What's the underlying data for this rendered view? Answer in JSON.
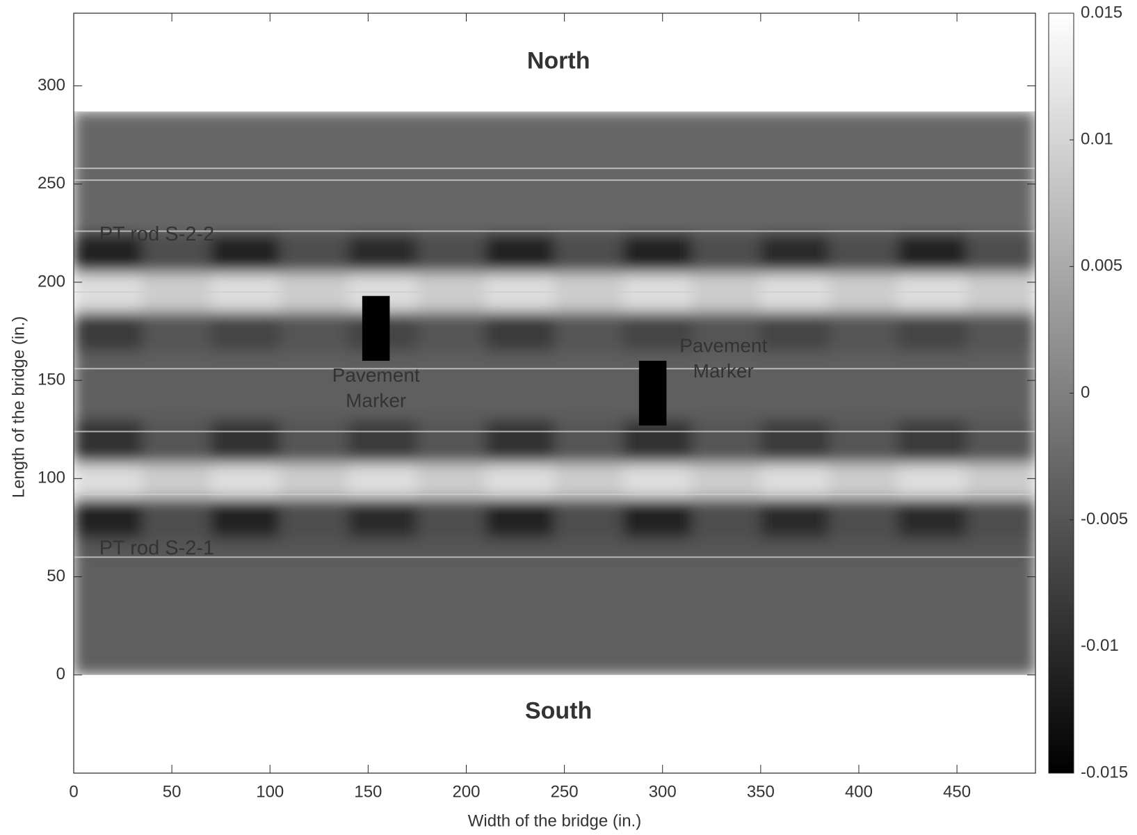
{
  "chart_data": {
    "type": "heatmap",
    "x_label": "Width of the bridge (in.)",
    "y_label": "Length of the bridge (in.)",
    "xlim": [
      0,
      490
    ],
    "ylim": [
      -50,
      337
    ],
    "xticks": [
      0,
      50,
      100,
      150,
      200,
      250,
      300,
      350,
      400,
      450
    ],
    "yticks": [
      0,
      50,
      100,
      150,
      200,
      250,
      300
    ],
    "colormap": "gray",
    "clim": [
      -0.015,
      0.015
    ],
    "cticks": [
      -0.015,
      -0.01,
      -0.005,
      0,
      0.005,
      0.01,
      0.015
    ],
    "xbins": [
      0,
      35,
      70,
      105,
      140,
      175,
      210,
      245,
      280,
      315,
      350,
      385,
      420,
      455,
      490
    ],
    "ybins": [
      0,
      60,
      70,
      90,
      108,
      130,
      165,
      185,
      205,
      225,
      287
    ],
    "z": [
      [
        -0.004,
        -0.004,
        -0.004,
        -0.004,
        -0.004,
        -0.004,
        -0.004,
        -0.004,
        -0.004,
        -0.004,
        -0.004,
        -0.004,
        -0.004,
        -0.004
      ],
      [
        -0.005,
        -0.005,
        -0.005,
        -0.005,
        -0.005,
        -0.005,
        -0.005,
        -0.005,
        -0.005,
        -0.005,
        -0.005,
        -0.005,
        -0.005,
        -0.005
      ],
      [
        -0.011,
        -0.006,
        -0.011,
        -0.006,
        -0.01,
        -0.006,
        -0.011,
        -0.006,
        -0.011,
        -0.006,
        -0.01,
        -0.006,
        -0.01,
        -0.006
      ],
      [
        0.011,
        0.009,
        0.011,
        0.009,
        0.011,
        0.009,
        0.011,
        0.009,
        0.011,
        0.009,
        0.011,
        0.009,
        0.011,
        0.009
      ],
      [
        -0.009,
        -0.005,
        -0.009,
        -0.005,
        -0.008,
        -0.005,
        -0.009,
        -0.005,
        -0.009,
        -0.005,
        -0.008,
        -0.005,
        -0.008,
        -0.005
      ],
      [
        -0.004,
        -0.004,
        -0.004,
        -0.004,
        -0.004,
        -0.004,
        -0.004,
        -0.004,
        -0.004,
        -0.004,
        -0.004,
        -0.004,
        -0.004,
        -0.004
      ],
      [
        -0.008,
        -0.005,
        -0.007,
        -0.005,
        -0.007,
        -0.005,
        -0.008,
        -0.005,
        -0.007,
        -0.005,
        -0.007,
        -0.005,
        -0.007,
        -0.005
      ],
      [
        0.011,
        0.009,
        0.011,
        0.009,
        0.011,
        0.009,
        0.011,
        0.009,
        0.011,
        0.009,
        0.011,
        0.009,
        0.011,
        0.009
      ],
      [
        -0.011,
        -0.006,
        -0.011,
        -0.006,
        -0.01,
        -0.006,
        -0.011,
        -0.006,
        -0.011,
        -0.006,
        -0.01,
        -0.006,
        -0.011,
        -0.006
      ],
      [
        -0.003,
        -0.003,
        -0.003,
        -0.003,
        -0.003,
        -0.003,
        -0.003,
        -0.003,
        -0.003,
        -0.003,
        -0.003,
        -0.003,
        -0.003,
        -0.003
      ]
    ],
    "bright_lines_y": [
      287,
      258,
      252,
      226,
      195,
      156,
      124,
      92,
      60
    ],
    "masked_regions": [
      {
        "x": [
          147,
          161
        ],
        "y": [
          160,
          193
        ]
      },
      {
        "x": [
          288,
          302
        ],
        "y": [
          127,
          160
        ]
      }
    ],
    "annotations": [
      {
        "text": "North",
        "x": 247,
        "y": 312,
        "color": "#4472c4"
      },
      {
        "text": "South",
        "x": 247,
        "y": -19,
        "color": "#4472c4"
      },
      {
        "text": "PT rod S-2-2",
        "x": 13,
        "y": 224,
        "color": "#ed7d31"
      },
      {
        "text": "PT rod S-2-1",
        "x": 13,
        "y": 64,
        "color": "#ed7d31"
      }
    ],
    "marker_labels": [
      {
        "lines": [
          "Pavement",
          "Marker"
        ],
        "x": 154,
        "y": [
          152,
          139
        ],
        "color": "#f3e6c0"
      },
      {
        "lines": [
          "Pavement",
          "Marker"
        ],
        "x": 331,
        "y": [
          167,
          154
        ],
        "color": "#f3e6c0"
      }
    ]
  }
}
